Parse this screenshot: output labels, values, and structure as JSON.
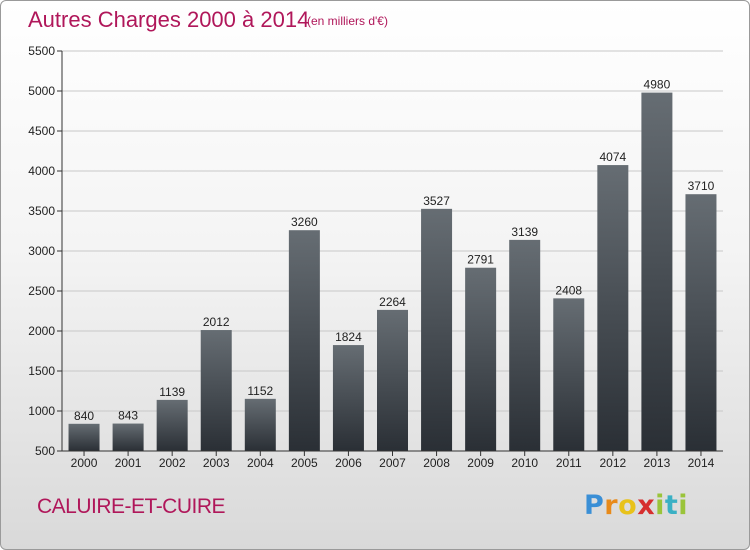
{
  "title": "Autres Charges 2000 à 2014",
  "subtitle": "(en milliers d'€)",
  "place": "CALUIRE-ET-CUIRE",
  "brand": {
    "letters": [
      "P",
      "r",
      "o",
      "x",
      "i",
      "t",
      "i"
    ],
    "colors": [
      "#3a8fd6",
      "#e88a1a",
      "#e8c21a",
      "#d62e2e",
      "#9ac43a",
      "#3ab0c4",
      "#9ac43a"
    ]
  },
  "colors": {
    "title": "#b0175a",
    "bar_top": "#666d73",
    "bar_bottom": "#2a2f35"
  },
  "chart_data": {
    "type": "bar",
    "title": "Autres Charges 2000 à 2014",
    "subtitle": "(en milliers d'€)",
    "categories": [
      "2000",
      "2001",
      "2002",
      "2003",
      "2004",
      "2005",
      "2006",
      "2007",
      "2008",
      "2009",
      "2010",
      "2011",
      "2012",
      "2013",
      "2014"
    ],
    "values": [
      840,
      843,
      1139,
      2012,
      1152,
      3260,
      1824,
      2264,
      3527,
      2791,
      3139,
      2408,
      4074,
      4980,
      3710
    ],
    "ylim": [
      500,
      5500
    ],
    "yticks": [
      500,
      1000,
      1500,
      2000,
      2500,
      3000,
      3500,
      4000,
      4500,
      5000,
      5500
    ],
    "grid": true,
    "legend": "none"
  }
}
